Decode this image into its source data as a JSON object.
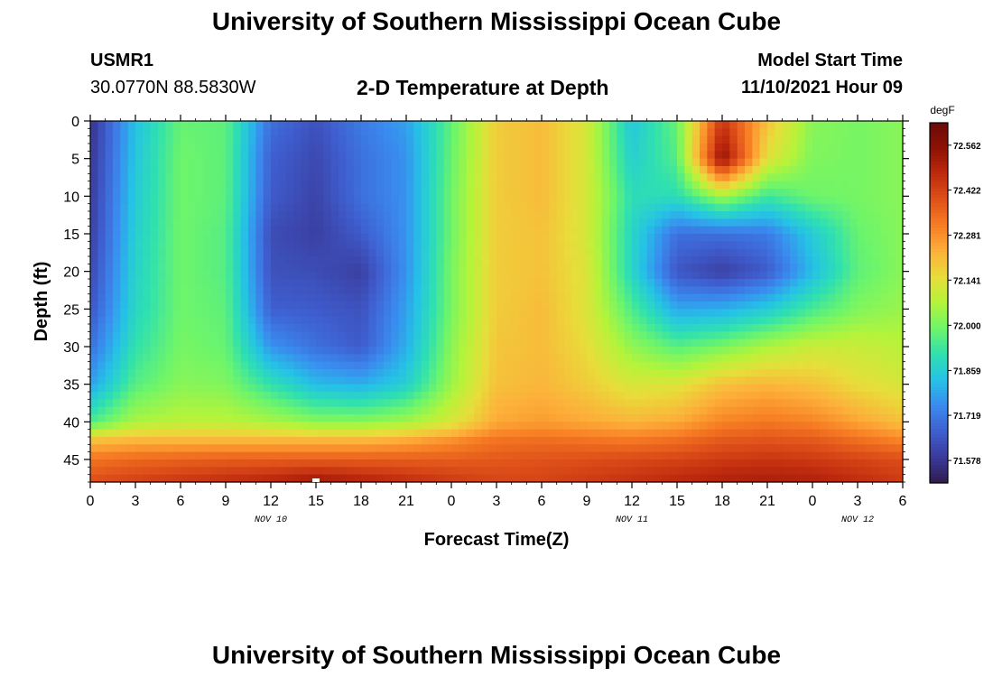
{
  "header": {
    "title": "University of Southern Mississippi Ocean Cube",
    "station": "USMR1",
    "location": "30.0770N  88.5830W",
    "subtitle": "2-D Temperature at Depth",
    "model_start_label": "Model Start Time",
    "model_start_value": "11/10/2021 Hour 09"
  },
  "footer": {
    "title": "University of Southern Mississippi Ocean Cube"
  },
  "chart_data": {
    "type": "heatmap",
    "title": "2-D Temperature at Depth",
    "xlabel": "Forecast Time(Z)",
    "ylabel": "Depth (ft)",
    "x_tick_labels": [
      "0",
      "3",
      "6",
      "9",
      "12",
      "15",
      "18",
      "21",
      "0",
      "3",
      "6",
      "9",
      "12",
      "15",
      "18",
      "21",
      "0",
      "3",
      "6"
    ],
    "x_hours": [
      0,
      3,
      6,
      9,
      12,
      15,
      18,
      21,
      24,
      27,
      30,
      33,
      36,
      39,
      42,
      45,
      48,
      51,
      54
    ],
    "date_labels": [
      {
        "text": "NOV 10",
        "hour": 12
      },
      {
        "text": "NOV 11",
        "hour": 36
      },
      {
        "text": "NOV 12",
        "hour": 51
      }
    ],
    "xlim": [
      0,
      54
    ],
    "y_ticks": [
      0,
      5,
      10,
      15,
      20,
      25,
      30,
      35,
      40,
      45
    ],
    "ylim": [
      0,
      48
    ],
    "y_inverted": true,
    "colorbar": {
      "unit": "degF",
      "labels": [
        "72.562",
        "72.422",
        "72.281",
        "72.141",
        "72.000",
        "71.859",
        "71.719",
        "71.578"
      ],
      "min": 71.508,
      "max": 72.632,
      "colormap": [
        "#2f1b4f",
        "#3a3a9a",
        "#3f5fd0",
        "#3a8bef",
        "#25c2e6",
        "#2fe0b0",
        "#6ef56a",
        "#b4f43a",
        "#e8dd3a",
        "#fdb03a",
        "#f77d23",
        "#e0521a",
        "#bf2a0e",
        "#8e1205",
        "#6a0a08"
      ]
    },
    "grid": false,
    "field_hours": [
      0,
      3,
      6,
      9,
      12,
      15,
      18,
      21,
      24,
      27,
      30,
      33,
      36,
      39,
      42,
      45,
      48,
      51,
      54
    ],
    "field_depths": [
      0,
      5,
      10,
      15,
      20,
      25,
      30,
      35,
      40,
      42.5,
      45,
      48
    ],
    "values": [
      [
        71.57,
        71.83,
        71.98,
        71.97,
        71.7,
        71.64,
        71.72,
        71.78,
        71.97,
        72.18,
        72.21,
        72.12,
        71.84,
        71.98,
        72.45,
        72.2,
        72.02,
        72.0,
        72.02
      ],
      [
        71.58,
        71.84,
        71.99,
        71.97,
        71.67,
        71.62,
        71.7,
        71.76,
        71.98,
        72.18,
        72.21,
        72.12,
        71.86,
        71.96,
        72.55,
        72.14,
        72.01,
        72.0,
        72.02
      ],
      [
        71.59,
        71.85,
        71.99,
        71.97,
        71.66,
        71.61,
        71.7,
        71.76,
        71.99,
        72.18,
        72.21,
        72.12,
        71.9,
        71.9,
        72.05,
        71.93,
        71.99,
        72.0,
        72.02
      ],
      [
        71.6,
        71.86,
        71.99,
        71.96,
        71.63,
        71.6,
        71.66,
        71.76,
        71.99,
        72.18,
        72.2,
        72.12,
        71.88,
        71.7,
        71.7,
        71.72,
        71.85,
        71.98,
        72.02
      ],
      [
        71.62,
        71.87,
        71.99,
        71.96,
        71.64,
        71.63,
        71.6,
        71.76,
        72.0,
        72.18,
        72.2,
        72.13,
        71.88,
        71.65,
        71.6,
        71.66,
        71.82,
        71.97,
        72.02
      ],
      [
        71.65,
        71.88,
        71.99,
        71.97,
        71.67,
        71.66,
        71.64,
        71.78,
        72.0,
        72.18,
        72.21,
        72.13,
        71.95,
        71.79,
        71.8,
        71.85,
        71.94,
        72.01,
        72.04
      ],
      [
        71.7,
        71.91,
        72.0,
        71.98,
        71.76,
        71.7,
        71.66,
        71.8,
        72.02,
        72.19,
        72.21,
        72.15,
        72.03,
        71.96,
        72.0,
        72.06,
        72.1,
        72.1,
        72.08
      ],
      [
        71.78,
        71.96,
        72.02,
        72.01,
        71.91,
        71.82,
        71.8,
        71.86,
        72.04,
        72.2,
        72.22,
        72.18,
        72.12,
        72.13,
        72.2,
        72.22,
        72.2,
        72.15,
        72.12
      ],
      [
        71.95,
        72.06,
        72.08,
        72.08,
        72.06,
        72.02,
        72.02,
        72.05,
        72.12,
        72.24,
        72.26,
        72.24,
        72.22,
        72.24,
        72.3,
        72.32,
        72.3,
        72.25,
        72.2
      ],
      [
        72.2,
        72.22,
        72.22,
        72.22,
        72.22,
        72.22,
        72.22,
        72.24,
        72.28,
        72.33,
        72.34,
        72.33,
        72.32,
        72.34,
        72.38,
        72.39,
        72.38,
        72.34,
        72.3
      ],
      [
        72.33,
        72.35,
        72.36,
        72.37,
        72.37,
        72.37,
        72.37,
        72.37,
        72.37,
        72.38,
        72.39,
        72.4,
        72.41,
        72.42,
        72.44,
        72.45,
        72.44,
        72.42,
        72.4
      ],
      [
        72.4,
        72.43,
        72.45,
        72.47,
        72.49,
        72.53,
        72.5,
        72.47,
        72.44,
        72.42,
        72.42,
        72.44,
        72.46,
        72.48,
        72.5,
        72.51,
        72.5,
        72.47,
        72.44
      ]
    ]
  }
}
